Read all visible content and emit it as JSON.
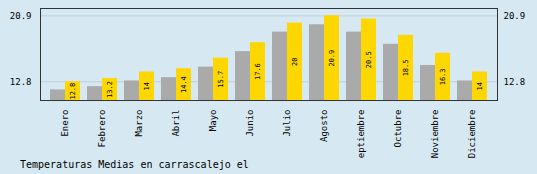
{
  "chart_data": {
    "type": "bar",
    "title": "Temperaturas Medias en carrascalejo el",
    "categories": [
      "Enero",
      "Febrero",
      "Marzo",
      "Abril",
      "Mayo",
      "Junio",
      "Julio",
      "Agosto",
      "Septiembre",
      "Octubre",
      "Noviembre",
      "Diciembre"
    ],
    "series": [
      {
        "color": "#AAAAAA",
        "values": [
          11.8,
          12.2,
          12.9,
          13.3,
          14.6,
          16.5,
          18.9,
          19.8,
          18.9,
          17.4,
          14.8,
          12.9
        ]
      },
      {
        "color": "#FFD700",
        "values": [
          12.8,
          13.2,
          14.0,
          14.4,
          15.7,
          17.6,
          20.0,
          20.9,
          20.5,
          18.5,
          16.3,
          14.0
        ],
        "data_labels": true
      }
    ],
    "ylim": [
      10.5,
      21.8
    ],
    "yticks": [
      12.8,
      20.9
    ],
    "y2lim": [
      10.5,
      21.8
    ],
    "y2ticks": [
      12.8,
      20.9
    ],
    "grid": true
  }
}
